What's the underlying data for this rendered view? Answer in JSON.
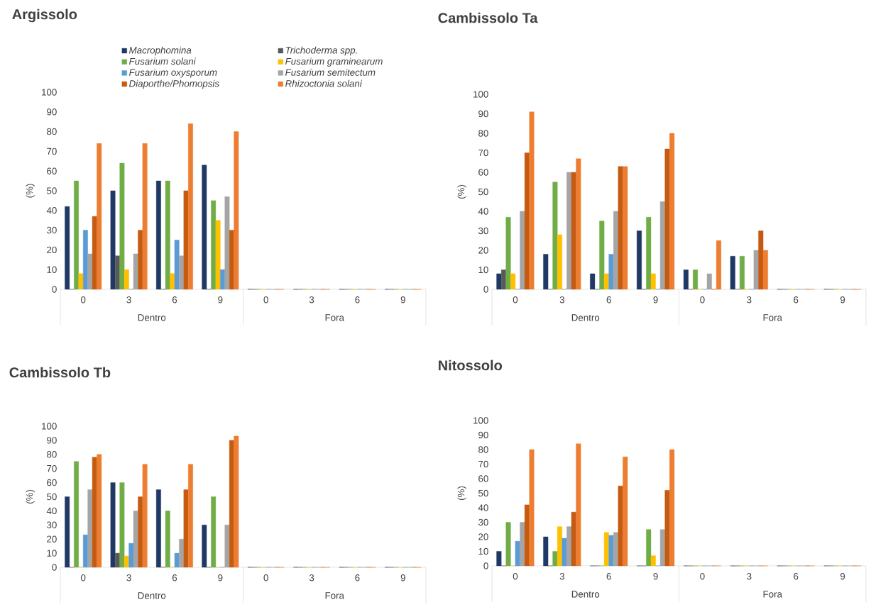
{
  "chart_data": [
    {
      "type": "bar",
      "title": "Argissolo",
      "ylabel": "(%)",
      "categories": [
        "0",
        "3",
        "6",
        "9",
        "0",
        "3",
        "6",
        "9"
      ],
      "annotations": [
        "Dentro",
        "Fora"
      ],
      "ylim": [
        0,
        100
      ],
      "yticks": [
        0,
        10,
        20,
        30,
        40,
        50,
        60,
        70,
        80,
        90,
        100
      ],
      "legend": "top",
      "series": [
        {
          "name": "Macrophomina",
          "color": "#1f3864",
          "values": [
            42,
            50,
            55,
            63,
            0,
            0,
            0,
            0
          ]
        },
        {
          "name": "Trichoderma spp.",
          "color": "#595959",
          "values": [
            0,
            17,
            0,
            0,
            0,
            0,
            0,
            0
          ]
        },
        {
          "name": "Fusarium solani",
          "color": "#70ad47",
          "values": [
            55,
            64,
            55,
            45,
            0,
            0,
            0,
            0
          ]
        },
        {
          "name": "Fusarium graminearum",
          "color": "#ffc000",
          "values": [
            8,
            10,
            8,
            35,
            0,
            0,
            0,
            0
          ]
        },
        {
          "name": "Fusarium oxysporum",
          "color": "#5b9bd5",
          "values": [
            30,
            0,
            25,
            10,
            0,
            0,
            0,
            0
          ]
        },
        {
          "name": "Fusarium semitectum",
          "color": "#a5a5a5",
          "values": [
            18,
            18,
            17,
            47,
            0,
            0,
            0,
            0
          ]
        },
        {
          "name": "Diaporthe/Phomopsis",
          "color": "#c55a11",
          "values": [
            37,
            30,
            50,
            30,
            0,
            0,
            0,
            0
          ]
        },
        {
          "name": "Rhizoctonia solani",
          "color": "#ed7d31",
          "values": [
            74,
            74,
            84,
            80,
            0,
            0,
            0,
            0
          ]
        }
      ]
    },
    {
      "type": "bar",
      "title": "Cambissolo Ta",
      "ylabel": "(%)",
      "categories": [
        "0",
        "3",
        "6",
        "9",
        "0",
        "3",
        "6",
        "9"
      ],
      "annotations": [
        "Dentro",
        "Fora"
      ],
      "ylim": [
        0,
        100
      ],
      "yticks": [
        0,
        10,
        20,
        30,
        40,
        50,
        60,
        70,
        80,
        90,
        100
      ],
      "series": [
        {
          "color": "#1f3864",
          "values": [
            8,
            18,
            8,
            30,
            10,
            17,
            0,
            0
          ]
        },
        {
          "color": "#595959",
          "values": [
            10,
            0,
            0,
            0,
            0,
            0,
            0,
            0
          ]
        },
        {
          "color": "#70ad47",
          "values": [
            37,
            55,
            35,
            37,
            10,
            17,
            0,
            0
          ]
        },
        {
          "color": "#ffc000",
          "values": [
            8,
            28,
            8,
            8,
            0,
            0,
            0,
            0
          ]
        },
        {
          "color": "#5b9bd5",
          "values": [
            0,
            0,
            18,
            0,
            0,
            0,
            0,
            0
          ]
        },
        {
          "color": "#a5a5a5",
          "values": [
            40,
            60,
            40,
            45,
            8,
            20,
            0,
            0
          ]
        },
        {
          "color": "#c55a11",
          "values": [
            70,
            60,
            63,
            72,
            0,
            30,
            0,
            0
          ]
        },
        {
          "color": "#ed7d31",
          "values": [
            91,
            67,
            63,
            80,
            25,
            20,
            0,
            0
          ]
        }
      ]
    },
    {
      "type": "bar",
      "title": "Cambissolo Tb",
      "ylabel": "(%)",
      "categories": [
        "0",
        "3",
        "6",
        "9",
        "0",
        "3",
        "6",
        "9"
      ],
      "annotations": [
        "Dentro",
        "Fora"
      ],
      "ylim": [
        0,
        100
      ],
      "yticks": [
        0,
        10,
        20,
        30,
        40,
        50,
        60,
        70,
        80,
        90,
        100
      ],
      "series": [
        {
          "color": "#1f3864",
          "values": [
            50,
            60,
            55,
            30,
            0,
            0,
            0,
            0
          ]
        },
        {
          "color": "#595959",
          "values": [
            0,
            10,
            0,
            0,
            0,
            0,
            0,
            0
          ]
        },
        {
          "color": "#70ad47",
          "values": [
            75,
            60,
            40,
            50,
            0,
            0,
            0,
            0
          ]
        },
        {
          "color": "#ffc000",
          "values": [
            0,
            8,
            0,
            0,
            0,
            0,
            0,
            0
          ]
        },
        {
          "color": "#5b9bd5",
          "values": [
            23,
            17,
            10,
            0,
            0,
            0,
            0,
            0
          ]
        },
        {
          "color": "#a5a5a5",
          "values": [
            55,
            40,
            20,
            30,
            0,
            0,
            0,
            0
          ]
        },
        {
          "color": "#c55a11",
          "values": [
            78,
            50,
            55,
            90,
            0,
            0,
            0,
            0
          ]
        },
        {
          "color": "#ed7d31",
          "values": [
            80,
            73,
            73,
            93,
            0,
            0,
            0,
            0
          ]
        }
      ]
    },
    {
      "type": "bar",
      "title": "Nitossolo",
      "ylabel": "(%)",
      "categories": [
        "0",
        "3",
        "6",
        "9",
        "0",
        "3",
        "6",
        "9"
      ],
      "annotations": [
        "Dentro",
        "Fora"
      ],
      "ylim": [
        0,
        100
      ],
      "yticks": [
        0,
        10,
        20,
        30,
        40,
        50,
        60,
        70,
        80,
        90,
        100
      ],
      "series": [
        {
          "color": "#1f3864",
          "values": [
            10,
            20,
            0,
            0,
            0,
            0,
            0,
            0
          ]
        },
        {
          "color": "#595959",
          "values": [
            0,
            0,
            0,
            0,
            0,
            0,
            0,
            0
          ]
        },
        {
          "color": "#70ad47",
          "values": [
            30,
            10,
            0,
            25,
            0,
            0,
            0,
            0
          ]
        },
        {
          "color": "#ffc000",
          "values": [
            0,
            27,
            23,
            7,
            0,
            0,
            0,
            0
          ]
        },
        {
          "color": "#5b9bd5",
          "values": [
            17,
            19,
            21,
            0,
            0,
            0,
            0,
            0
          ]
        },
        {
          "color": "#a5a5a5",
          "values": [
            30,
            27,
            23,
            25,
            0,
            0,
            0,
            0
          ]
        },
        {
          "color": "#c55a11",
          "values": [
            42,
            37,
            55,
            52,
            0,
            0,
            0,
            0
          ]
        },
        {
          "color": "#ed7d31",
          "values": [
            80,
            84,
            75,
            80,
            0,
            0,
            0,
            0
          ]
        }
      ]
    }
  ]
}
